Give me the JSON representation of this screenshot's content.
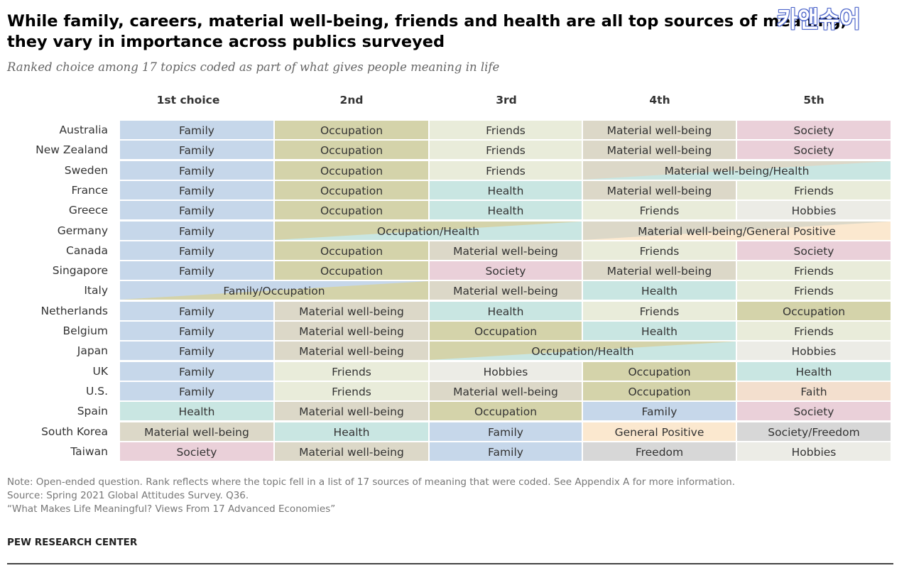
{
  "title": "While family, careers, material well-being, friends and health are all top sources of meaning, they vary in importance across publics surveyed",
  "subtitle": "Ranked choice among 17 topics coded as part of what gives people meaning in life",
  "watermark": "카앤슈어",
  "colors": {
    "Family": "#c6d7ea",
    "Occupation": "#d4d3aa",
    "Friends": "#e9ecda",
    "Material well-being": "#dcd8c8",
    "Health": "#c9e6e2",
    "Society": "#ead0d9",
    "Hobbies": "#ecece6",
    "Faith": "#f3dfce",
    "General Positive": "#fbe8cf",
    "Freedom": "#d7d7d7",
    "Society/Freedom": "#d7d7d7"
  },
  "chart_data": {
    "type": "table",
    "columns": [
      "1st choice",
      "2nd",
      "3rd",
      "4th",
      "5th"
    ],
    "rows": [
      {
        "country": "Australia",
        "cells": [
          {
            "text": "Family",
            "span": 1,
            "colors": [
              "Family"
            ]
          },
          {
            "text": "Occupation",
            "span": 1,
            "colors": [
              "Occupation"
            ]
          },
          {
            "text": "Friends",
            "span": 1,
            "colors": [
              "Friends"
            ]
          },
          {
            "text": "Material well-being",
            "span": 1,
            "colors": [
              "Material well-being"
            ]
          },
          {
            "text": "Society",
            "span": 1,
            "colors": [
              "Society"
            ]
          }
        ]
      },
      {
        "country": "New Zealand",
        "cells": [
          {
            "text": "Family",
            "span": 1,
            "colors": [
              "Family"
            ]
          },
          {
            "text": "Occupation",
            "span": 1,
            "colors": [
              "Occupation"
            ]
          },
          {
            "text": "Friends",
            "span": 1,
            "colors": [
              "Friends"
            ]
          },
          {
            "text": "Material well-being",
            "span": 1,
            "colors": [
              "Material well-being"
            ]
          },
          {
            "text": "Society",
            "span": 1,
            "colors": [
              "Society"
            ]
          }
        ]
      },
      {
        "country": "Sweden",
        "cells": [
          {
            "text": "Family",
            "span": 1,
            "colors": [
              "Family"
            ]
          },
          {
            "text": "Occupation",
            "span": 1,
            "colors": [
              "Occupation"
            ]
          },
          {
            "text": "Friends",
            "span": 1,
            "colors": [
              "Friends"
            ]
          },
          {
            "text": "Material well-being/Health",
            "span": 2,
            "colors": [
              "Material well-being",
              "Health"
            ]
          }
        ]
      },
      {
        "country": "France",
        "cells": [
          {
            "text": "Family",
            "span": 1,
            "colors": [
              "Family"
            ]
          },
          {
            "text": "Occupation",
            "span": 1,
            "colors": [
              "Occupation"
            ]
          },
          {
            "text": "Health",
            "span": 1,
            "colors": [
              "Health"
            ]
          },
          {
            "text": "Material well-being",
            "span": 1,
            "colors": [
              "Material well-being"
            ]
          },
          {
            "text": "Friends",
            "span": 1,
            "colors": [
              "Friends"
            ]
          }
        ]
      },
      {
        "country": "Greece",
        "cells": [
          {
            "text": "Family",
            "span": 1,
            "colors": [
              "Family"
            ]
          },
          {
            "text": "Occupation",
            "span": 1,
            "colors": [
              "Occupation"
            ]
          },
          {
            "text": "Health",
            "span": 1,
            "colors": [
              "Health"
            ]
          },
          {
            "text": "Friends",
            "span": 1,
            "colors": [
              "Friends"
            ]
          },
          {
            "text": "Hobbies",
            "span": 1,
            "colors": [
              "Hobbies"
            ]
          }
        ]
      },
      {
        "country": "Germany",
        "cells": [
          {
            "text": "Family",
            "span": 1,
            "colors": [
              "Family"
            ]
          },
          {
            "text": "Occupation/Health",
            "span": 2,
            "colors": [
              "Occupation",
              "Health"
            ]
          },
          {
            "text": "Material well-being/General Positive",
            "span": 2,
            "colors": [
              "Material well-being",
              "General Positive"
            ]
          }
        ]
      },
      {
        "country": "Canada",
        "cells": [
          {
            "text": "Family",
            "span": 1,
            "colors": [
              "Family"
            ]
          },
          {
            "text": "Occupation",
            "span": 1,
            "colors": [
              "Occupation"
            ]
          },
          {
            "text": "Material well-being",
            "span": 1,
            "colors": [
              "Material well-being"
            ]
          },
          {
            "text": "Friends",
            "span": 1,
            "colors": [
              "Friends"
            ]
          },
          {
            "text": "Society",
            "span": 1,
            "colors": [
              "Society"
            ]
          }
        ]
      },
      {
        "country": "Singapore",
        "cells": [
          {
            "text": "Family",
            "span": 1,
            "colors": [
              "Family"
            ]
          },
          {
            "text": "Occupation",
            "span": 1,
            "colors": [
              "Occupation"
            ]
          },
          {
            "text": "Society",
            "span": 1,
            "colors": [
              "Society"
            ]
          },
          {
            "text": "Material well-being",
            "span": 1,
            "colors": [
              "Material well-being"
            ]
          },
          {
            "text": "Friends",
            "span": 1,
            "colors": [
              "Friends"
            ]
          }
        ]
      },
      {
        "country": "Italy",
        "cells": [
          {
            "text": "Family/Occupation",
            "span": 2,
            "colors": [
              "Family",
              "Occupation"
            ]
          },
          {
            "text": "Material well-being",
            "span": 1,
            "colors": [
              "Material well-being"
            ]
          },
          {
            "text": "Health",
            "span": 1,
            "colors": [
              "Health"
            ]
          },
          {
            "text": "Friends",
            "span": 1,
            "colors": [
              "Friends"
            ]
          }
        ]
      },
      {
        "country": "Netherlands",
        "cells": [
          {
            "text": "Family",
            "span": 1,
            "colors": [
              "Family"
            ]
          },
          {
            "text": "Material well-being",
            "span": 1,
            "colors": [
              "Material well-being"
            ]
          },
          {
            "text": "Health",
            "span": 1,
            "colors": [
              "Health"
            ]
          },
          {
            "text": "Friends",
            "span": 1,
            "colors": [
              "Friends"
            ]
          },
          {
            "text": "Occupation",
            "span": 1,
            "colors": [
              "Occupation"
            ]
          }
        ]
      },
      {
        "country": "Belgium",
        "cells": [
          {
            "text": "Family",
            "span": 1,
            "colors": [
              "Family"
            ]
          },
          {
            "text": "Material well-being",
            "span": 1,
            "colors": [
              "Material well-being"
            ]
          },
          {
            "text": "Occupation",
            "span": 1,
            "colors": [
              "Occupation"
            ]
          },
          {
            "text": "Health",
            "span": 1,
            "colors": [
              "Health"
            ]
          },
          {
            "text": "Friends",
            "span": 1,
            "colors": [
              "Friends"
            ]
          }
        ]
      },
      {
        "country": "Japan",
        "cells": [
          {
            "text": "Family",
            "span": 1,
            "colors": [
              "Family"
            ]
          },
          {
            "text": "Material well-being",
            "span": 1,
            "colors": [
              "Material well-being"
            ]
          },
          {
            "text": "Occupation/Health",
            "span": 2,
            "colors": [
              "Occupation",
              "Health"
            ]
          },
          {
            "text": "Hobbies",
            "span": 1,
            "colors": [
              "Hobbies"
            ]
          }
        ]
      },
      {
        "country": "UK",
        "cells": [
          {
            "text": "Family",
            "span": 1,
            "colors": [
              "Family"
            ]
          },
          {
            "text": "Friends",
            "span": 1,
            "colors": [
              "Friends"
            ]
          },
          {
            "text": "Hobbies",
            "span": 1,
            "colors": [
              "Hobbies"
            ]
          },
          {
            "text": "Occupation",
            "span": 1,
            "colors": [
              "Occupation"
            ]
          },
          {
            "text": "Health",
            "span": 1,
            "colors": [
              "Health"
            ]
          }
        ]
      },
      {
        "country": "U.S.",
        "cells": [
          {
            "text": "Family",
            "span": 1,
            "colors": [
              "Family"
            ]
          },
          {
            "text": "Friends",
            "span": 1,
            "colors": [
              "Friends"
            ]
          },
          {
            "text": "Material well-being",
            "span": 1,
            "colors": [
              "Material well-being"
            ]
          },
          {
            "text": "Occupation",
            "span": 1,
            "colors": [
              "Occupation"
            ]
          },
          {
            "text": "Faith",
            "span": 1,
            "colors": [
              "Faith"
            ]
          }
        ]
      },
      {
        "country": "Spain",
        "cells": [
          {
            "text": "Health",
            "span": 1,
            "colors": [
              "Health"
            ]
          },
          {
            "text": "Material well-being",
            "span": 1,
            "colors": [
              "Material well-being"
            ]
          },
          {
            "text": "Occupation",
            "span": 1,
            "colors": [
              "Occupation"
            ]
          },
          {
            "text": "Family",
            "span": 1,
            "colors": [
              "Family"
            ]
          },
          {
            "text": "Society",
            "span": 1,
            "colors": [
              "Society"
            ]
          }
        ]
      },
      {
        "country": "South Korea",
        "cells": [
          {
            "text": "Material well-being",
            "span": 1,
            "colors": [
              "Material well-being"
            ]
          },
          {
            "text": "Health",
            "span": 1,
            "colors": [
              "Health"
            ]
          },
          {
            "text": "Family",
            "span": 1,
            "colors": [
              "Family"
            ]
          },
          {
            "text": "General Positive",
            "span": 1,
            "colors": [
              "General Positive"
            ]
          },
          {
            "text": "Society/Freedom",
            "span": 1,
            "colors": [
              "Society/Freedom"
            ]
          }
        ]
      },
      {
        "country": "Taiwan",
        "cells": [
          {
            "text": "Society",
            "span": 1,
            "colors": [
              "Society"
            ]
          },
          {
            "text": "Material well-being",
            "span": 1,
            "colors": [
              "Material well-being"
            ]
          },
          {
            "text": "Family",
            "span": 1,
            "colors": [
              "Family"
            ]
          },
          {
            "text": "Freedom",
            "span": 1,
            "colors": [
              "Freedom"
            ]
          },
          {
            "text": "Hobbies",
            "span": 1,
            "colors": [
              "Hobbies"
            ]
          }
        ]
      }
    ]
  },
  "note_line1": "Note: Open-ended question. Rank reflects where the topic fell in a list of 17 sources of meaning that were coded. See Appendix A for more information.",
  "source": "Source: Spring 2021 Global Attitudes Survey. Q36.",
  "report": "“What Makes Life Meaningful? Views From 17 Advanced Economies”",
  "brand": "PEW RESEARCH CENTER"
}
